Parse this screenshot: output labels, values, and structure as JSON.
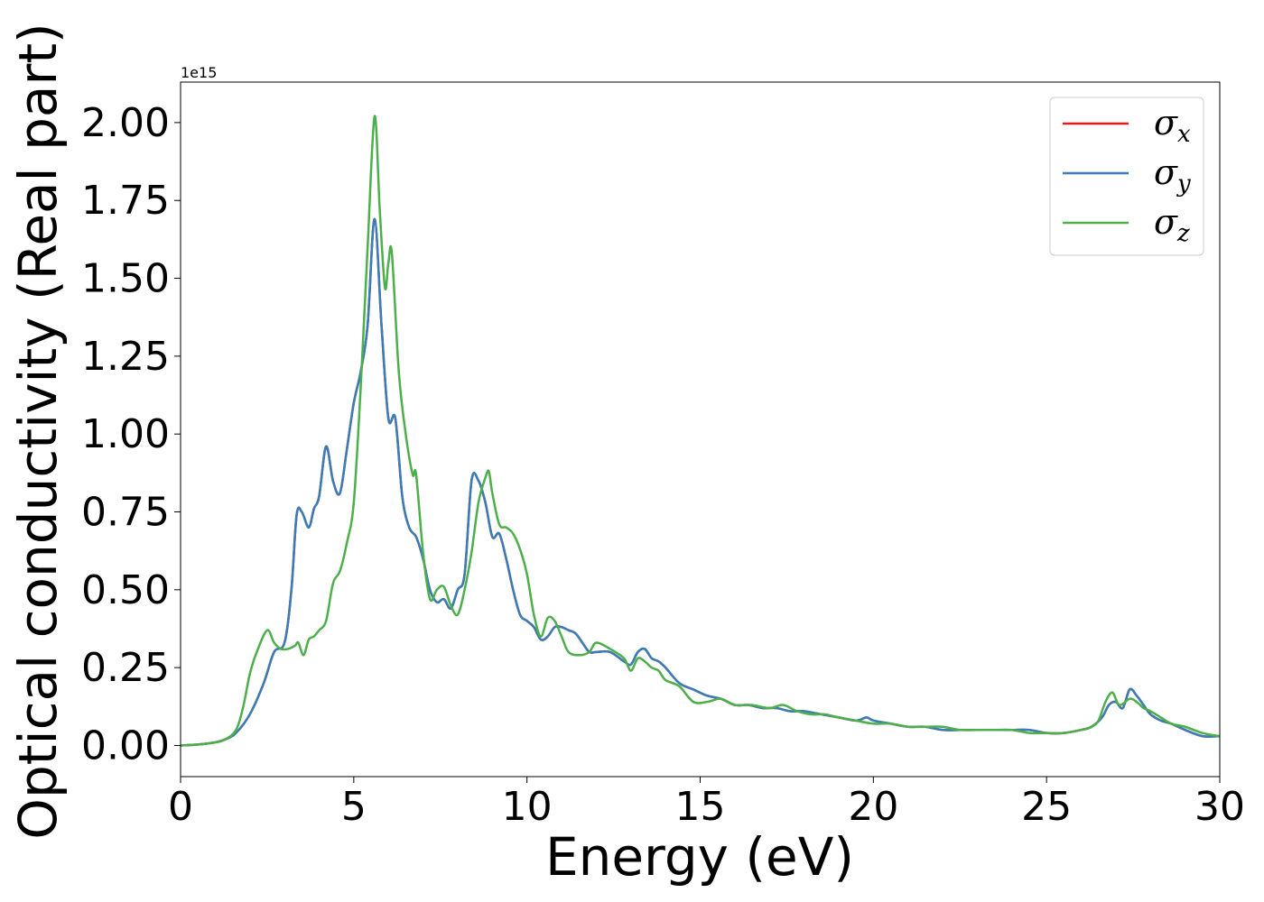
{
  "chart_data": {
    "type": "line",
    "title": "",
    "xlabel": "Energy (eV)",
    "ylabel": "Optical conductivity (Real part)",
    "y_offset_label": "1e15",
    "y_scale": 1000000000000000.0,
    "xlim": [
      0,
      30
    ],
    "ylim": [
      -0.1,
      2.13
    ],
    "x_ticks": [
      0,
      5,
      10,
      15,
      20,
      25,
      30
    ],
    "x_tick_labels": [
      "0",
      "5",
      "10",
      "15",
      "20",
      "25",
      "30"
    ],
    "y_ticks": [
      0.0,
      0.25,
      0.5,
      0.75,
      1.0,
      1.25,
      1.5,
      1.75,
      2.0
    ],
    "y_tick_labels": [
      "0.00",
      "0.25",
      "0.50",
      "0.75",
      "1.00",
      "1.25",
      "1.50",
      "1.75",
      "2.00"
    ],
    "grid": false,
    "legend_position": "top-right",
    "series": [
      {
        "name": "σx",
        "symbol": "σ",
        "subscript": "x",
        "color": "#e41a1c",
        "x": [
          0,
          0.5,
          1.0,
          1.3,
          1.6,
          2.0,
          2.4,
          2.7,
          3.0,
          3.2,
          3.35,
          3.5,
          3.7,
          3.85,
          4.0,
          4.2,
          4.4,
          4.6,
          4.8,
          5.0,
          5.2,
          5.4,
          5.6,
          5.8,
          6.0,
          6.2,
          6.4,
          6.6,
          6.8,
          7.0,
          7.2,
          7.4,
          7.6,
          7.8,
          8.0,
          8.2,
          8.4,
          8.6,
          8.8,
          9.0,
          9.2,
          9.4,
          9.6,
          9.8,
          10.0,
          10.2,
          10.4,
          10.6,
          10.8,
          11.0,
          11.2,
          11.4,
          11.6,
          11.8,
          12.0,
          12.4,
          12.8,
          13.0,
          13.2,
          13.4,
          13.6,
          13.8,
          14.0,
          14.4,
          14.8,
          15.2,
          15.6,
          16.0,
          16.4,
          16.8,
          17.2,
          17.6,
          18.0,
          18.5,
          19.0,
          19.5,
          19.8,
          20.0,
          20.5,
          21.0,
          21.5,
          22.0,
          22.5,
          23.0,
          23.5,
          24.0,
          24.5,
          25.0,
          25.5,
          26.0,
          26.3,
          26.6,
          26.8,
          27.0,
          27.2,
          27.4,
          27.6,
          27.8,
          28.0,
          28.3,
          28.6,
          29.0,
          29.5,
          30.0
        ],
        "y": [
          0.0,
          0.003,
          0.01,
          0.02,
          0.04,
          0.1,
          0.2,
          0.3,
          0.33,
          0.5,
          0.74,
          0.75,
          0.7,
          0.76,
          0.8,
          0.96,
          0.85,
          0.81,
          0.95,
          1.1,
          1.2,
          1.35,
          1.69,
          1.35,
          1.05,
          1.05,
          0.8,
          0.7,
          0.67,
          0.6,
          0.5,
          0.46,
          0.47,
          0.44,
          0.5,
          0.55,
          0.85,
          0.85,
          0.78,
          0.67,
          0.68,
          0.6,
          0.5,
          0.42,
          0.4,
          0.38,
          0.34,
          0.35,
          0.38,
          0.38,
          0.37,
          0.36,
          0.33,
          0.3,
          0.3,
          0.3,
          0.27,
          0.26,
          0.3,
          0.31,
          0.28,
          0.27,
          0.25,
          0.2,
          0.18,
          0.16,
          0.15,
          0.13,
          0.13,
          0.12,
          0.12,
          0.11,
          0.11,
          0.1,
          0.09,
          0.08,
          0.09,
          0.08,
          0.07,
          0.06,
          0.06,
          0.05,
          0.05,
          0.05,
          0.05,
          0.05,
          0.05,
          0.04,
          0.04,
          0.05,
          0.06,
          0.09,
          0.13,
          0.14,
          0.12,
          0.18,
          0.16,
          0.13,
          0.1,
          0.08,
          0.07,
          0.05,
          0.03,
          0.03
        ]
      },
      {
        "name": "σy",
        "symbol": "σ",
        "subscript": "y",
        "color": "#377eb8",
        "x": [
          0,
          0.5,
          1.0,
          1.3,
          1.6,
          2.0,
          2.4,
          2.7,
          3.0,
          3.2,
          3.35,
          3.5,
          3.7,
          3.85,
          4.0,
          4.2,
          4.4,
          4.6,
          4.8,
          5.0,
          5.2,
          5.4,
          5.6,
          5.8,
          6.0,
          6.2,
          6.4,
          6.6,
          6.8,
          7.0,
          7.2,
          7.4,
          7.6,
          7.8,
          8.0,
          8.2,
          8.4,
          8.6,
          8.8,
          9.0,
          9.2,
          9.4,
          9.6,
          9.8,
          10.0,
          10.2,
          10.4,
          10.6,
          10.8,
          11.0,
          11.2,
          11.4,
          11.6,
          11.8,
          12.0,
          12.4,
          12.8,
          13.0,
          13.2,
          13.4,
          13.6,
          13.8,
          14.0,
          14.4,
          14.8,
          15.2,
          15.6,
          16.0,
          16.4,
          16.8,
          17.2,
          17.6,
          18.0,
          18.5,
          19.0,
          19.5,
          19.8,
          20.0,
          20.5,
          21.0,
          21.5,
          22.0,
          22.5,
          23.0,
          23.5,
          24.0,
          24.5,
          25.0,
          25.5,
          26.0,
          26.3,
          26.6,
          26.8,
          27.0,
          27.2,
          27.4,
          27.6,
          27.8,
          28.0,
          28.3,
          28.6,
          29.0,
          29.5,
          30.0
        ],
        "y": [
          0.0,
          0.003,
          0.01,
          0.02,
          0.04,
          0.1,
          0.2,
          0.3,
          0.33,
          0.5,
          0.74,
          0.75,
          0.7,
          0.76,
          0.8,
          0.96,
          0.85,
          0.81,
          0.95,
          1.1,
          1.2,
          1.35,
          1.69,
          1.35,
          1.05,
          1.05,
          0.8,
          0.7,
          0.67,
          0.6,
          0.5,
          0.46,
          0.47,
          0.44,
          0.5,
          0.55,
          0.85,
          0.85,
          0.78,
          0.67,
          0.68,
          0.6,
          0.5,
          0.42,
          0.4,
          0.38,
          0.34,
          0.35,
          0.38,
          0.38,
          0.37,
          0.36,
          0.33,
          0.3,
          0.3,
          0.3,
          0.27,
          0.26,
          0.3,
          0.31,
          0.28,
          0.27,
          0.25,
          0.2,
          0.18,
          0.16,
          0.15,
          0.13,
          0.13,
          0.12,
          0.12,
          0.11,
          0.11,
          0.1,
          0.09,
          0.08,
          0.09,
          0.08,
          0.07,
          0.06,
          0.06,
          0.05,
          0.05,
          0.05,
          0.05,
          0.05,
          0.05,
          0.04,
          0.04,
          0.05,
          0.06,
          0.09,
          0.13,
          0.14,
          0.12,
          0.18,
          0.16,
          0.13,
          0.1,
          0.08,
          0.07,
          0.05,
          0.03,
          0.03
        ]
      },
      {
        "name": "σz",
        "symbol": "σ",
        "subscript": "z",
        "color": "#4daf4a",
        "x": [
          0,
          0.5,
          1.0,
          1.3,
          1.6,
          1.8,
          2.0,
          2.2,
          2.5,
          2.7,
          2.9,
          3.1,
          3.3,
          3.4,
          3.55,
          3.7,
          3.85,
          4.0,
          4.2,
          4.4,
          4.6,
          4.8,
          5.0,
          5.2,
          5.4,
          5.6,
          5.75,
          5.9,
          6.0,
          6.1,
          6.3,
          6.5,
          6.7,
          6.8,
          7.0,
          7.2,
          7.4,
          7.6,
          7.8,
          8.0,
          8.2,
          8.4,
          8.6,
          8.8,
          8.9,
          9.0,
          9.2,
          9.4,
          9.6,
          9.8,
          10.0,
          10.2,
          10.4,
          10.6,
          10.8,
          11.0,
          11.2,
          11.5,
          11.8,
          12.0,
          12.4,
          12.8,
          13.0,
          13.2,
          13.4,
          13.6,
          13.8,
          14.0,
          14.4,
          14.8,
          15.2,
          15.6,
          16.0,
          16.5,
          17.0,
          17.4,
          17.8,
          18.2,
          18.6,
          19.0,
          19.5,
          20.0,
          20.5,
          21.0,
          21.5,
          22.0,
          22.5,
          23.0,
          23.5,
          24.0,
          24.5,
          25.0,
          25.5,
          26.0,
          26.3,
          26.5,
          26.7,
          26.9,
          27.1,
          27.4,
          27.6,
          27.8,
          28.0,
          28.3,
          28.6,
          29.0,
          29.5,
          30.0
        ],
        "y": [
          0.0,
          0.003,
          0.01,
          0.02,
          0.05,
          0.12,
          0.23,
          0.3,
          0.37,
          0.33,
          0.31,
          0.31,
          0.32,
          0.33,
          0.29,
          0.34,
          0.35,
          0.37,
          0.4,
          0.52,
          0.56,
          0.65,
          0.78,
          1.15,
          1.6,
          2.02,
          1.72,
          1.47,
          1.55,
          1.58,
          1.2,
          1.0,
          0.87,
          0.87,
          0.62,
          0.47,
          0.5,
          0.51,
          0.45,
          0.42,
          0.5,
          0.62,
          0.78,
          0.86,
          0.88,
          0.81,
          0.71,
          0.7,
          0.68,
          0.63,
          0.55,
          0.42,
          0.35,
          0.41,
          0.4,
          0.35,
          0.3,
          0.29,
          0.3,
          0.33,
          0.31,
          0.28,
          0.24,
          0.28,
          0.27,
          0.25,
          0.24,
          0.21,
          0.19,
          0.14,
          0.14,
          0.15,
          0.13,
          0.13,
          0.12,
          0.13,
          0.11,
          0.1,
          0.1,
          0.09,
          0.08,
          0.07,
          0.07,
          0.06,
          0.06,
          0.06,
          0.05,
          0.05,
          0.05,
          0.05,
          0.04,
          0.04,
          0.04,
          0.05,
          0.06,
          0.08,
          0.14,
          0.17,
          0.13,
          0.15,
          0.14,
          0.12,
          0.11,
          0.09,
          0.07,
          0.06,
          0.04,
          0.03
        ]
      }
    ]
  }
}
